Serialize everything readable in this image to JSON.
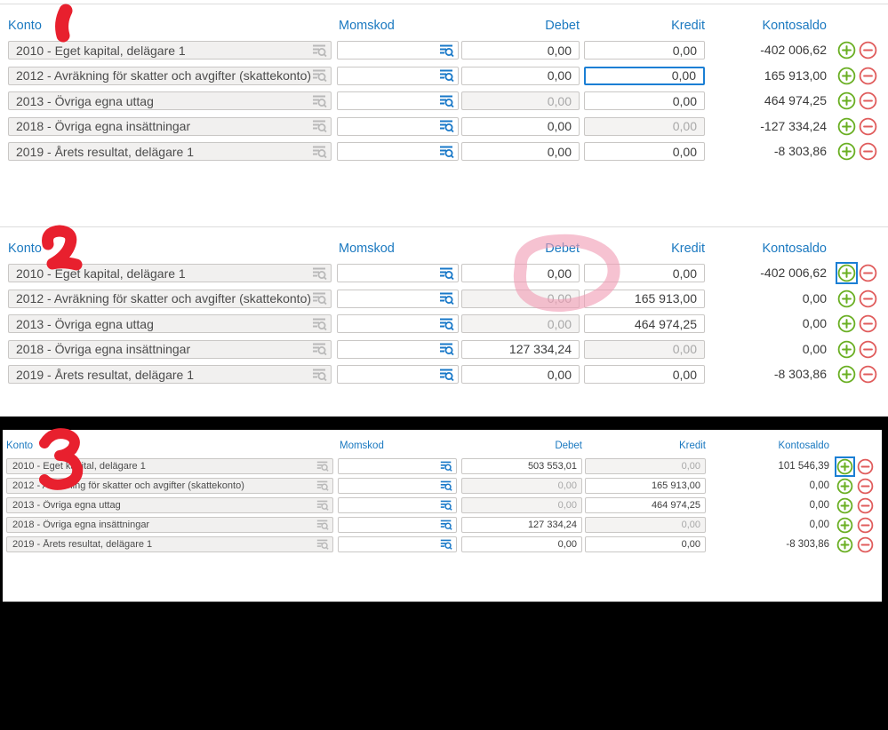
{
  "colors": {
    "header_blue": "#1b79c0",
    "add_green": "#6aaf23",
    "remove_red": "#e05c5c",
    "focus_blue": "#1b7fd4",
    "marker_red": "#e8202e",
    "highlight_pink": "#f19db5"
  },
  "headers": {
    "konto": "Konto",
    "momskod": "Momskod",
    "debet": "Debet",
    "kredit": "Kredit",
    "kontosaldo": "Kontosaldo"
  },
  "icons": {
    "lookup": "list-search-icon",
    "add": "plus-icon",
    "remove": "minus-icon"
  },
  "annotations": {
    "marker1": "1",
    "marker2": "2",
    "marker3": "3",
    "highlight": "circle around Debet column"
  },
  "sections": [
    {
      "marker": "1",
      "rows": [
        {
          "konto": "2010 - Eget kapital, delägare 1",
          "momskod": "",
          "debet": "0,00",
          "kredit": "0,00",
          "kontosaldo": "-402 006,62",
          "debet_state": "normal",
          "kredit_state": "normal",
          "add_state": "normal"
        },
        {
          "konto": "2012 - Avräkning för skatter och avgifter (skattekonto)",
          "momskod": "",
          "debet": "0,00",
          "kredit": "0,00",
          "kontosaldo": "165 913,00",
          "debet_state": "normal",
          "kredit_state": "focused",
          "add_state": "normal"
        },
        {
          "konto": "2013 - Övriga egna uttag",
          "momskod": "",
          "debet": "0,00",
          "kredit": "0,00",
          "kontosaldo": "464 974,25",
          "debet_state": "disabled",
          "kredit_state": "normal",
          "add_state": "normal"
        },
        {
          "konto": "2018 - Övriga egna insättningar",
          "momskod": "",
          "debet": "0,00",
          "kredit": "0,00",
          "kontosaldo": "-127 334,24",
          "debet_state": "normal",
          "kredit_state": "disabled",
          "add_state": "normal"
        },
        {
          "konto": "2019 - Årets resultat, delägare 1",
          "momskod": "",
          "debet": "0,00",
          "kredit": "0,00",
          "kontosaldo": "-8 303,86",
          "debet_state": "normal",
          "kredit_state": "normal",
          "add_state": "normal"
        }
      ]
    },
    {
      "marker": "2",
      "rows": [
        {
          "konto": "2010 - Eget kapital, delägare 1",
          "momskod": "",
          "debet": "0,00",
          "kredit": "0,00",
          "kontosaldo": "-402 006,62",
          "debet_state": "normal",
          "kredit_state": "normal",
          "add_state": "focused"
        },
        {
          "konto": "2012 - Avräkning för skatter och avgifter (skattekonto)",
          "momskod": "",
          "debet": "0,00",
          "kredit": "165 913,00",
          "kontosaldo": "0,00",
          "debet_state": "disabled",
          "kredit_state": "normal",
          "add_state": "normal"
        },
        {
          "konto": "2013 - Övriga egna uttag",
          "momskod": "",
          "debet": "0,00",
          "kredit": "464 974,25",
          "kontosaldo": "0,00",
          "debet_state": "disabled",
          "kredit_state": "normal",
          "add_state": "normal"
        },
        {
          "konto": "2018 - Övriga egna insättningar",
          "momskod": "",
          "debet": "127 334,24",
          "kredit": "0,00",
          "kontosaldo": "0,00",
          "debet_state": "normal",
          "kredit_state": "disabled",
          "add_state": "normal"
        },
        {
          "konto": "2019 - Årets resultat, delägare 1",
          "momskod": "",
          "debet": "0,00",
          "kredit": "0,00",
          "kontosaldo": "-8 303,86",
          "debet_state": "normal",
          "kredit_state": "normal",
          "add_state": "normal"
        }
      ]
    },
    {
      "marker": "3",
      "rows": [
        {
          "konto": "2010 - Eget kapital, delägare 1",
          "momskod": "",
          "debet": "503 553,01",
          "kredit": "0,00",
          "kontosaldo": "101 546,39",
          "debet_state": "normal",
          "kredit_state": "disabled",
          "add_state": "focused"
        },
        {
          "konto": "2012 - Avräkning för skatter och avgifter (skattekonto)",
          "momskod": "",
          "debet": "0,00",
          "kredit": "165 913,00",
          "kontosaldo": "0,00",
          "debet_state": "disabled",
          "kredit_state": "normal",
          "add_state": "normal"
        },
        {
          "konto": "2013 - Övriga egna uttag",
          "momskod": "",
          "debet": "0,00",
          "kredit": "464 974,25",
          "kontosaldo": "0,00",
          "debet_state": "disabled",
          "kredit_state": "normal",
          "add_state": "normal"
        },
        {
          "konto": "2018 - Övriga egna insättningar",
          "momskod": "",
          "debet": "127 334,24",
          "kredit": "0,00",
          "kontosaldo": "0,00",
          "debet_state": "normal",
          "kredit_state": "disabled",
          "add_state": "normal"
        },
        {
          "konto": "2019 - Årets resultat, delägare 1",
          "momskod": "",
          "debet": "0,00",
          "kredit": "0,00",
          "kontosaldo": "-8 303,86",
          "debet_state": "normal",
          "kredit_state": "normal",
          "add_state": "normal"
        }
      ]
    }
  ]
}
